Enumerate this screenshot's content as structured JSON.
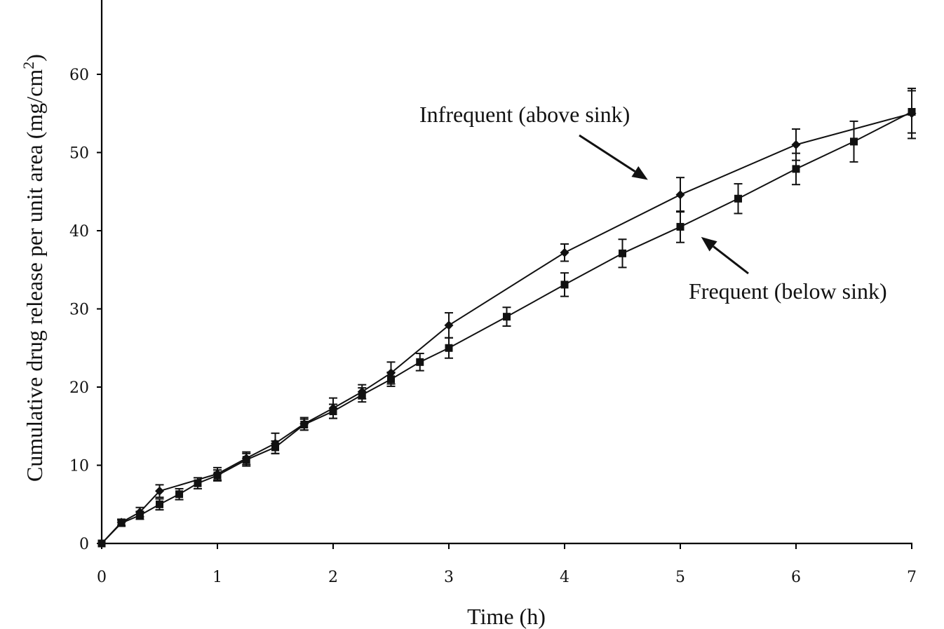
{
  "chart_data": {
    "type": "line",
    "xlabel": "Time (h)",
    "ylabel": "Cumulative drug release per unit area (mg/cm",
    "ylabel_sup": "2",
    "ylabel_close": ")",
    "xlim": [
      0,
      7
    ],
    "ylim": [
      0,
      60
    ],
    "x_ticks": [
      "0",
      "1",
      "2",
      "3",
      "4",
      "5",
      "6",
      "7"
    ],
    "y_ticks": [
      "0",
      "10",
      "20",
      "30",
      "40",
      "50",
      "60"
    ],
    "grid": false,
    "legend": "none",
    "series": [
      {
        "marker": "diamond",
        "x": [
          0,
          0.17,
          0.33,
          0.5,
          1,
          1.25,
          1.5,
          1.75,
          2,
          2.25,
          2.5,
          3,
          4,
          5,
          6,
          7
        ],
        "y": [
          0,
          2.7,
          4.0,
          6.7,
          8.9,
          10.9,
          12.8,
          15.3,
          17.3,
          19.4,
          21.8,
          27.9,
          37.2,
          44.6,
          51.0,
          55.0
        ],
        "err": [
          0,
          0.4,
          0.6,
          0.8,
          0.8,
          0.8,
          1.3,
          0.8,
          1.3,
          0.9,
          1.4,
          1.6,
          1.1,
          2.2,
          2.0,
          3.2
        ]
      },
      {
        "marker": "square",
        "x": [
          0,
          0.17,
          0.33,
          0.5,
          0.67,
          0.83,
          1,
          1.25,
          1.5,
          1.75,
          2,
          2.25,
          2.5,
          2.75,
          3,
          3.5,
          4,
          4.5,
          5,
          5.5,
          6,
          6.5,
          7
        ],
        "y": [
          0,
          2.6,
          3.6,
          5.0,
          6.3,
          7.7,
          8.7,
          10.7,
          12.3,
          15.2,
          16.9,
          19.0,
          21.0,
          23.2,
          25.0,
          29.0,
          33.1,
          37.1,
          40.5,
          44.1,
          47.9,
          51.4,
          55.2
        ],
        "err": [
          0,
          0.4,
          0.5,
          0.7,
          0.7,
          0.7,
          0.7,
          0.8,
          0.8,
          0.7,
          0.9,
          0.9,
          0.9,
          1.1,
          1.3,
          1.2,
          1.5,
          1.8,
          2.0,
          1.9,
          2.0,
          2.6,
          2.7
        ]
      }
    ],
    "annotations": [
      {
        "text": "Infrequent (above sink)",
        "x": 4.72,
        "y": 46.5
      },
      {
        "text": "Frequent (below sink)",
        "x": 5.18,
        "y": 39.2
      }
    ]
  }
}
